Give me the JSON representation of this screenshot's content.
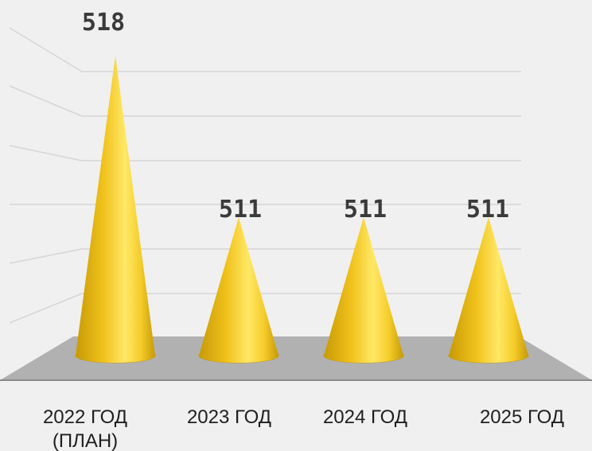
{
  "chart_data": {
    "type": "bar",
    "style": "3d-cone",
    "categories": [
      [
        "2022 ГОД",
        "(ПЛАН)"
      ],
      [
        "2023 ГОД"
      ],
      [
        "2024 ГОД"
      ],
      [
        "2025 ГОД"
      ]
    ],
    "values": [
      518,
      511,
      511,
      511
    ],
    "data_labels": [
      "518",
      "511",
      "511",
      "511"
    ],
    "title": "",
    "xlabel": "",
    "ylabel": "",
    "ylim": [
      505,
      520
    ],
    "grid": true,
    "legend": "none",
    "colors": {
      "background": "#f0f0f0",
      "floor": "#b1b1b1",
      "cone_light": "#ffe866",
      "cone_mid": "#f1c21c",
      "cone_dark": "#c79a06",
      "gridline": "#d6d6d6"
    }
  }
}
